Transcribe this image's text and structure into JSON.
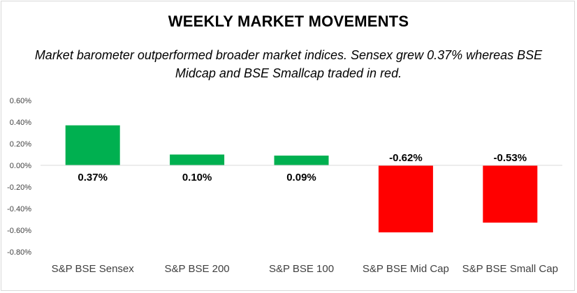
{
  "title": "WEEKLY MARKET MOVEMENTS",
  "subtitle": "Market barometer outperformed broader market indices. Sensex grew 0.37% whereas BSE Midcap and BSE Smallcap traded in red.",
  "chart_data": {
    "type": "bar",
    "categories": [
      "S&P BSE Sensex",
      "S&P BSE 200",
      "S&P BSE 100",
      "S&P BSE Mid Cap",
      "S&P BSE Small Cap"
    ],
    "values": [
      0.37,
      0.1,
      0.09,
      -0.62,
      -0.53
    ],
    "data_labels": [
      "0.37%",
      "0.10%",
      "0.09%",
      "-0.62%",
      "-0.53%"
    ],
    "colors": [
      "#00b050",
      "#00b050",
      "#00b050",
      "#ff0000",
      "#ff0000"
    ],
    "positive_color": "#00b050",
    "negative_color": "#ff0000",
    "ylim": [
      -0.8,
      0.6
    ],
    "yticks": [
      0.6,
      0.4,
      0.2,
      0.0,
      -0.2,
      -0.4,
      -0.6,
      -0.8
    ],
    "ytick_labels": [
      "0.60%",
      "0.40%",
      "0.20%",
      "0.00%",
      "-0.20%",
      "-0.40%",
      "-0.60%",
      "-0.80%"
    ],
    "grid": false,
    "legend": "none"
  }
}
